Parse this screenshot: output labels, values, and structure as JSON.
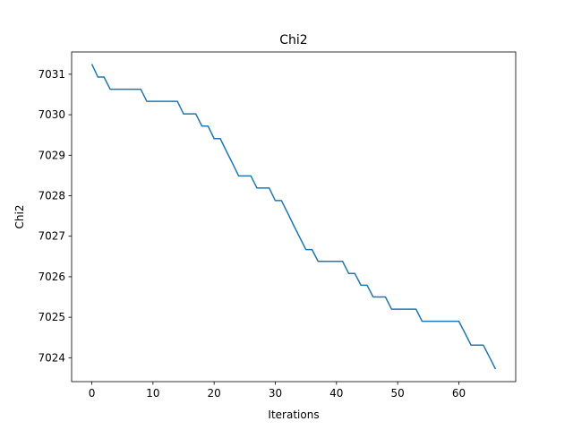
{
  "chart_data": {
    "type": "line",
    "title": "Chi2",
    "xlabel": "Iterations",
    "ylabel": "Chi2",
    "xlim": [
      -3.3,
      69.3
    ],
    "ylim": [
      7023.41,
      7031.55
    ],
    "xticks": [
      0,
      10,
      20,
      30,
      40,
      50,
      60
    ],
    "yticks": [
      7024,
      7025,
      7026,
      7027,
      7028,
      7029,
      7030,
      7031
    ],
    "grid": false,
    "legend": "none",
    "series": [
      {
        "color": "#1f77b4",
        "x": [
          0,
          1,
          2,
          3,
          4,
          5,
          6,
          7,
          8,
          9,
          10,
          11,
          12,
          13,
          14,
          15,
          16,
          17,
          18,
          19,
          20,
          21,
          22,
          23,
          24,
          25,
          26,
          27,
          28,
          29,
          30,
          31,
          32,
          33,
          34,
          35,
          36,
          37,
          38,
          39,
          40,
          41,
          42,
          43,
          44,
          45,
          46,
          47,
          48,
          49,
          50,
          51,
          52,
          53,
          54,
          55,
          56,
          57,
          58,
          59,
          60,
          61,
          62,
          63,
          64,
          65,
          66
        ],
        "y": [
          7031.25,
          7030.93,
          7030.93,
          7030.63,
          7030.63,
          7030.63,
          7030.63,
          7030.63,
          7030.63,
          7030.33,
          7030.33,
          7030.33,
          7030.33,
          7030.33,
          7030.33,
          7030.02,
          7030.02,
          7030.02,
          7029.72,
          7029.72,
          7029.41,
          7029.41,
          7029.1,
          7028.8,
          7028.49,
          7028.49,
          7028.49,
          7028.19,
          7028.19,
          7028.19,
          7027.88,
          7027.88,
          7027.58,
          7027.27,
          7026.97,
          7026.67,
          7026.67,
          7026.38,
          7026.38,
          7026.38,
          7026.38,
          7026.38,
          7026.08,
          7026.08,
          7025.79,
          7025.79,
          7025.5,
          7025.5,
          7025.5,
          7025.2,
          7025.2,
          7025.2,
          7025.2,
          7025.2,
          7024.9,
          7024.9,
          7024.9,
          7024.9,
          7024.9,
          7024.9,
          7024.9,
          7024.61,
          7024.31,
          7024.31,
          7024.31,
          7024.02,
          7023.72
        ]
      }
    ]
  }
}
